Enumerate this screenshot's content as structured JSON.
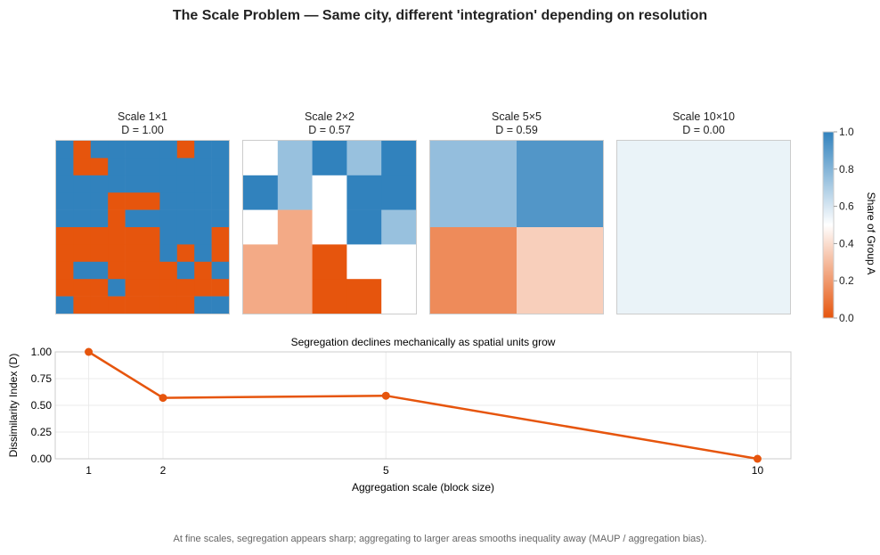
{
  "title": "The Scale Problem — Same city, different 'integration' depending on resolution",
  "panels": [
    {
      "name": "Scale 1×1",
      "block": 1,
      "d_label": "D = 1.00"
    },
    {
      "name": "Scale 2×2",
      "block": 2,
      "d_label": "D = 0.57"
    },
    {
      "name": "Scale 5×5",
      "block": 5,
      "d_label": "D = 0.59"
    },
    {
      "name": "Scale 10×10",
      "block": 10,
      "d_label": "D = 0.00"
    }
  ],
  "colorbar": {
    "label": "Share of Group A",
    "ticks": [
      "0.0",
      "0.2",
      "0.4",
      "0.6",
      "0.8",
      "1.0"
    ],
    "color_low": "#e6550d",
    "color_mid": "#ffffff",
    "color_high": "#3182bd"
  },
  "chart_data": [
    {
      "type": "heatmap",
      "title": "Scale 1×1",
      "description_values": "share of Group A per cell (1 = A, 0 = B), rows top to bottom",
      "values": [
        [
          1,
          0,
          1,
          1,
          1,
          1,
          1,
          0,
          1,
          1
        ],
        [
          1,
          0,
          0,
          1,
          1,
          1,
          1,
          1,
          1,
          1
        ],
        [
          1,
          1,
          1,
          1,
          1,
          1,
          1,
          1,
          1,
          1
        ],
        [
          1,
          1,
          1,
          0,
          0,
          0,
          1,
          1,
          1,
          1
        ],
        [
          1,
          1,
          1,
          0,
          1,
          1,
          1,
          1,
          1,
          1
        ],
        [
          0,
          0,
          0,
          0,
          0,
          0,
          1,
          1,
          1,
          0
        ],
        [
          0,
          0,
          0,
          0,
          0,
          0,
          1,
          0,
          1,
          0
        ],
        [
          0,
          1,
          1,
          0,
          0,
          0,
          0,
          1,
          0,
          1
        ],
        [
          0,
          0,
          0,
          1,
          0,
          0,
          0,
          0,
          0,
          0
        ],
        [
          1,
          0,
          0,
          0,
          0,
          0,
          0,
          0,
          1,
          1
        ]
      ],
      "vmin": 0,
      "vmax": 1
    },
    {
      "type": "line",
      "title": "Segregation declines mechanically as spatial units grow",
      "xlabel": "Aggregation scale (block size)",
      "ylabel": "Dissimilarity Index (D)",
      "x": [
        1,
        2,
        5,
        10
      ],
      "y": [
        1.0,
        0.57,
        0.59,
        0.0
      ],
      "xticks": [
        "1",
        "2",
        "5",
        "10"
      ],
      "yticks": [
        "0.00",
        "0.25",
        "0.50",
        "0.75",
        "1.00"
      ],
      "xlim": [
        0.55,
        10.45
      ],
      "ylim": [
        0,
        1
      ],
      "color": "#e6550d",
      "grid": true
    }
  ],
  "caption": "At fine scales, segregation appears sharp; aggregating to larger areas smooths inequality away (MAUP / aggregation bias)."
}
